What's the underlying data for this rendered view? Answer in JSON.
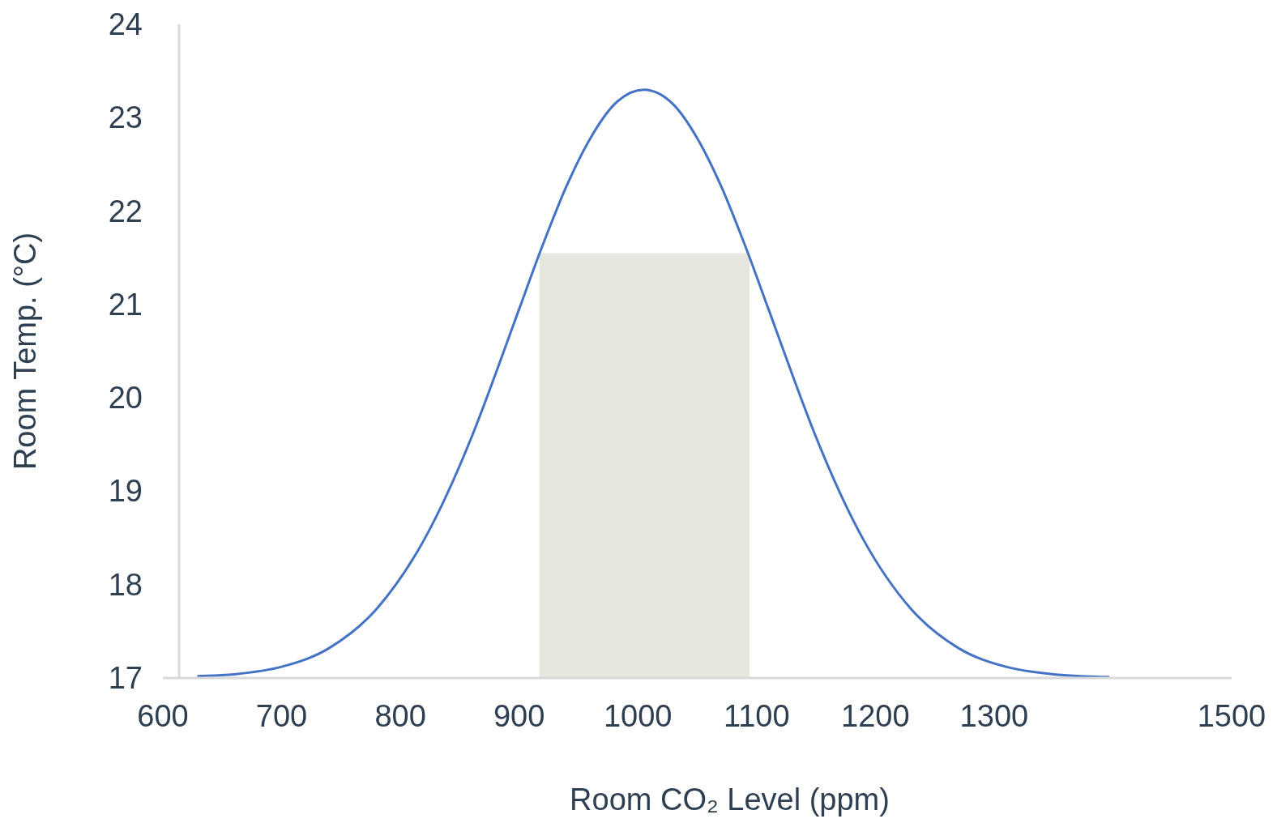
{
  "chart_data": {
    "type": "line",
    "xlabel": "Room CO₂ Level (ppm)",
    "ylabel": "Room Temp. (°C)",
    "xlim": [
      600,
      1500
    ],
    "xticks": [
      600,
      700,
      800,
      900,
      1000,
      1100,
      1200,
      1300,
      1500
    ],
    "ylim": [
      17,
      24
    ],
    "yticks": [
      17,
      18,
      19,
      20,
      21,
      22,
      23,
      24
    ],
    "grid": false,
    "series": [
      {
        "type": "area",
        "color": "#e6e6df",
        "x": [
          917,
          1094
        ],
        "values": [
          21.55,
          21.55
        ]
      },
      {
        "type": "line",
        "color": "#4472c4",
        "x": [
          629,
          660,
          700,
          740,
          780,
          820,
          860,
          880,
          900,
          920,
          940,
          960,
          980,
          1005,
          1030,
          1050,
          1070,
          1090,
          1110,
          1130,
          1150,
          1190,
          1230,
          1270,
          1310,
          1350,
          1397
        ],
        "values": [
          17.02,
          17.04,
          17.12,
          17.32,
          17.74,
          18.48,
          19.58,
          20.25,
          20.95,
          21.64,
          22.27,
          22.78,
          23.14,
          23.3,
          23.14,
          22.78,
          22.27,
          21.64,
          20.95,
          20.25,
          19.58,
          18.48,
          17.74,
          17.32,
          17.12,
          17.04,
          17.01
        ]
      }
    ]
  }
}
